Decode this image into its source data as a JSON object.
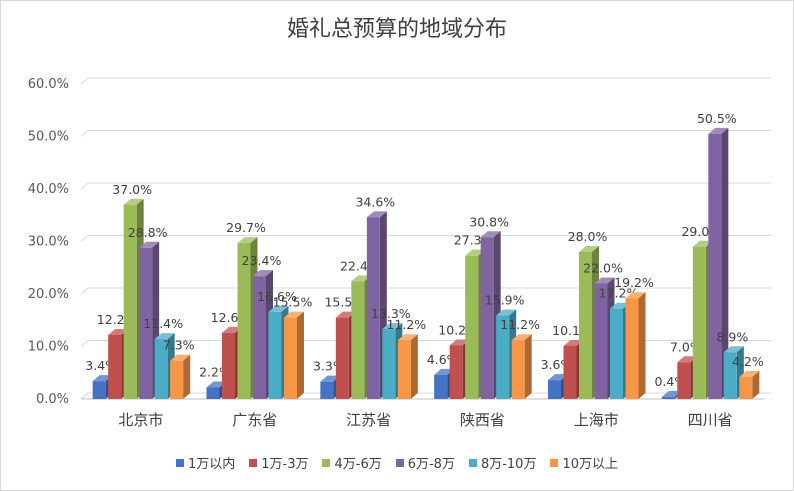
{
  "chart_data": {
    "type": "bar",
    "title": "婚礼总预算的地域分布",
    "categories": [
      "北京市",
      "广东省",
      "江苏省",
      "陕西省",
      "上海市",
      "四川省"
    ],
    "series": [
      {
        "name": "1万以内",
        "color": "#4472c4",
        "values": [
          3.4,
          2.2,
          3.3,
          4.6,
          3.6,
          0.4
        ]
      },
      {
        "name": "1万-3万",
        "color": "#c0504d",
        "values": [
          12.2,
          12.6,
          15.5,
          10.2,
          10.1,
          7.0
        ]
      },
      {
        "name": "4万-6万",
        "color": "#9bbb59",
        "values": [
          37.0,
          29.7,
          22.4,
          27.3,
          28.0,
          29.0
        ]
      },
      {
        "name": "6万-8万",
        "color": "#8064a2",
        "values": [
          28.8,
          23.4,
          34.6,
          30.8,
          22.0,
          50.5
        ]
      },
      {
        "name": "8万-10万",
        "color": "#4bacc6",
        "values": [
          11.4,
          16.6,
          13.3,
          15.9,
          17.2,
          8.9
        ]
      },
      {
        "name": "10万以上",
        "color": "#f79646",
        "values": [
          7.3,
          15.5,
          11.2,
          11.2,
          19.2,
          4.2
        ]
      }
    ],
    "y_ticks": [
      "0.0%",
      "10.0%",
      "20.0%",
      "30.0%",
      "40.0%",
      "50.0%",
      "60.0%"
    ],
    "ylim": [
      0,
      60
    ],
    "value_suffix": "%",
    "grid": true,
    "legend_position": "bottom"
  }
}
